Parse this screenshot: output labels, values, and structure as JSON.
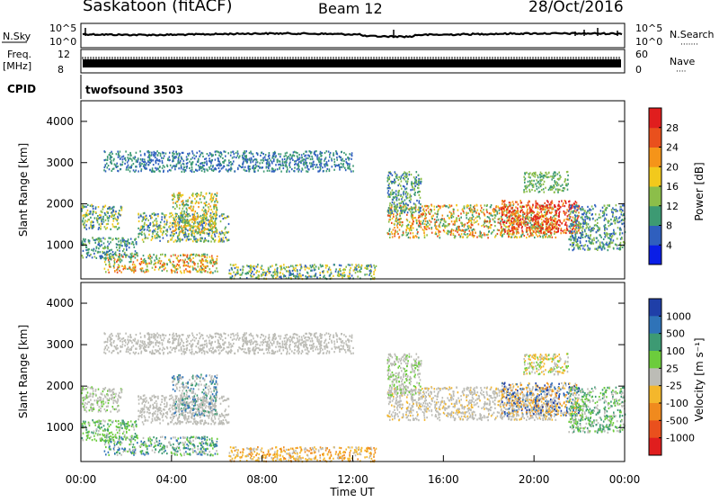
{
  "header": {
    "title": "Saskatoon (fitACF)",
    "beam": "Beam 12",
    "date": "28/Oct/2016"
  },
  "panels": {
    "nsky": {
      "label": "N.Sky",
      "tick_top": "10^5",
      "tick_bottom": "10^0",
      "right_label": "N.Search",
      "right_tick_top": "10^5",
      "right_tick_bottom": "10^0",
      "right_dots": "·······"
    },
    "freq": {
      "label_top": "Freq.",
      "label_bottom": "[MHz]",
      "tick_top": "12",
      "tick_bottom": "8",
      "right_label": "Nave",
      "right_tick_top": "60",
      "right_tick_bottom": "0",
      "right_dots": "····"
    },
    "cpid": {
      "label": "CPID",
      "value": "twofsound 3503"
    }
  },
  "chart_data": [
    {
      "type": "heatmap",
      "name": "power",
      "ylabel": "Slant Range [km]",
      "xlabel": "",
      "ylim": [
        180,
        4500
      ],
      "y_ticks": [
        "1000",
        "2000",
        "3000",
        "4000"
      ],
      "colorbar": {
        "label": "Power [dB]",
        "ticks": [
          "4",
          "8",
          "12",
          "16",
          "20",
          "24",
          "28"
        ],
        "colors": [
          "#0a1ee6",
          "#2f5fbe",
          "#3d9a73",
          "#8cbe4a",
          "#f2c91c",
          "#f59419",
          "#e9501d",
          "#e01e1e"
        ]
      }
    },
    {
      "type": "heatmap",
      "name": "velocity",
      "ylabel": "Slant Range [km]",
      "xlabel": "Time UT",
      "ylim": [
        180,
        4500
      ],
      "y_ticks": [
        "1000",
        "2000",
        "3000",
        "4000"
      ],
      "x_ticks": [
        "00:00",
        "04:00",
        "08:00",
        "12:00",
        "16:00",
        "20:00",
        "00:00"
      ],
      "colorbar": {
        "label": "Velocity [m s⁻¹]",
        "ticks": [
          "1000",
          "500",
          "100",
          "25",
          "-25",
          "-100",
          "-500",
          "-1000"
        ],
        "colors": [
          "#1f3fa8",
          "#2f73b8",
          "#3d9a73",
          "#6ccc3c",
          "#bcbcb6",
          "#f4b72c",
          "#f08a1e",
          "#e9501d",
          "#e01e1e"
        ]
      }
    }
  ]
}
